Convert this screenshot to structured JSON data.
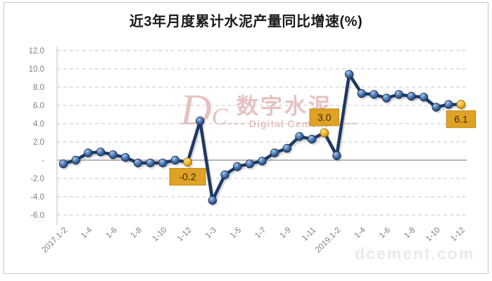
{
  "title": "近3年月度累计水泥产量同比增速(%)",
  "watermark": {
    "logo": "DC",
    "name_cn": "数字水泥",
    "name_en": "Digital Cement",
    "website": "dcement.com"
  },
  "colors": {
    "background": "#ffffff",
    "border": "#c9c9c9",
    "grid": "#c7c7c7",
    "zero_line": "#8c8c8c",
    "axis_line": "#bfbfbf",
    "axis_text": "#7f7f7f",
    "title_text": "#1a1a1a",
    "line": "#1f3864",
    "marker_blue": "#3f6fae",
    "marker_yellow": "#eeb01e",
    "label_box": "#dfa226",
    "label_box_border": "#bd8b12",
    "label_text": "#3a2a00",
    "watermark_pink": "#d49090",
    "watermark_gray": "#eaeaea"
  },
  "chart_data": {
    "type": "line",
    "title": "近3年月度累计水泥产量同比增速(%)",
    "x_tick_labels": [
      "2017.1-2",
      "1-4",
      "1-6",
      "1-8",
      "1-10",
      "1-12",
      "1-3",
      "1-5",
      "1-7",
      "1-9",
      "1-11",
      "2019.1-2",
      "1-4",
      "1-6",
      "1-8",
      "1-10",
      "1-12"
    ],
    "tick_every": 2,
    "values": [
      -0.4,
      0.0,
      0.8,
      0.9,
      0.6,
      0.3,
      -0.3,
      -0.3,
      -0.3,
      0.0,
      -0.2,
      4.3,
      -4.4,
      -1.6,
      -0.7,
      -0.4,
      -0.1,
      0.8,
      1.3,
      2.6,
      2.3,
      3.0,
      0.5,
      9.4,
      7.3,
      7.2,
      6.8,
      7.2,
      7.0,
      6.9,
      5.8,
      6.1,
      6.1
    ],
    "highlight_points": [
      {
        "index": 10,
        "label": "-0.2",
        "placement": "below"
      },
      {
        "index": 21,
        "label": "3.0",
        "placement": "above"
      },
      {
        "index": 32,
        "label": "6.1",
        "placement": "below"
      }
    ],
    "ylim": [
      -6,
      12
    ],
    "ytick_step": 2,
    "ytick_labels": [
      "12.0",
      "10.0",
      "8.0",
      "6.0",
      "4.0",
      "2.0",
      "-",
      "-2.0",
      "-4.0",
      "-6.0"
    ],
    "grid": "horizontal-dashed",
    "legend": "none"
  }
}
